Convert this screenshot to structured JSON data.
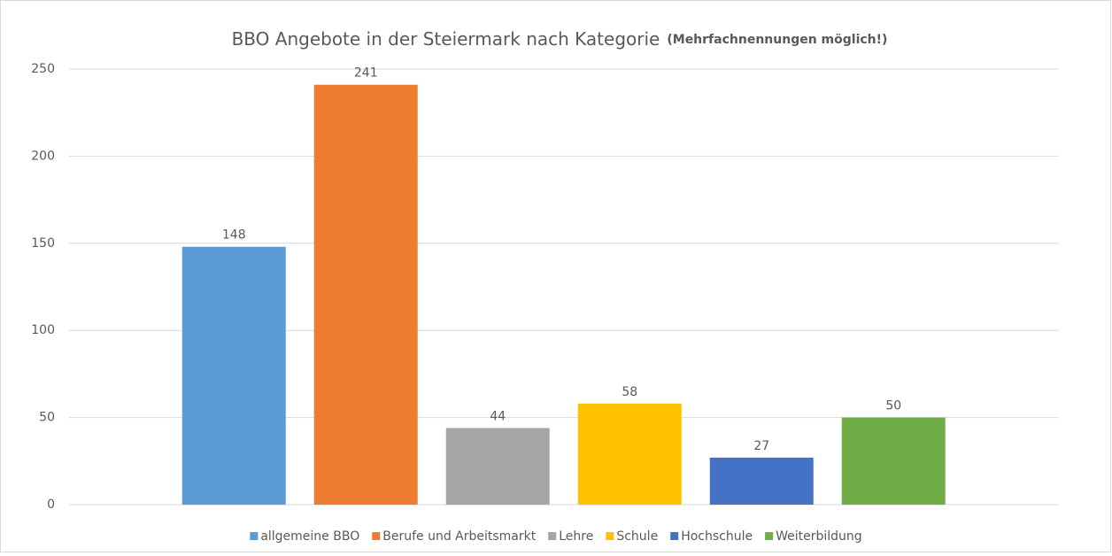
{
  "chart_data": {
    "type": "bar",
    "title": "BBO Angebote in der Steiermark nach Kategorie",
    "subtitle": "(Mehrfachnennungen möglich!)",
    "series": [
      {
        "name": "allgemeine BBO",
        "color": "#5b9bd5",
        "values": [
          148
        ]
      },
      {
        "name": "Berufe und Arbeitsmarkt",
        "color": "#ed7d31",
        "values": [
          241
        ]
      },
      {
        "name": "Lehre",
        "color": "#a5a5a5",
        "values": [
          44
        ]
      },
      {
        "name": "Schule",
        "color": "#ffc000",
        "values": [
          58
        ]
      },
      {
        "name": "Hochschule",
        "color": "#4472c4",
        "values": [
          27
        ]
      },
      {
        "name": "Weiterbildung",
        "color": "#70ad47",
        "values": [
          50
        ]
      }
    ],
    "ylim": [
      0,
      250
    ],
    "yticks": [
      0,
      50,
      100,
      150,
      200,
      250
    ],
    "grid": true,
    "legend": "bottom"
  }
}
